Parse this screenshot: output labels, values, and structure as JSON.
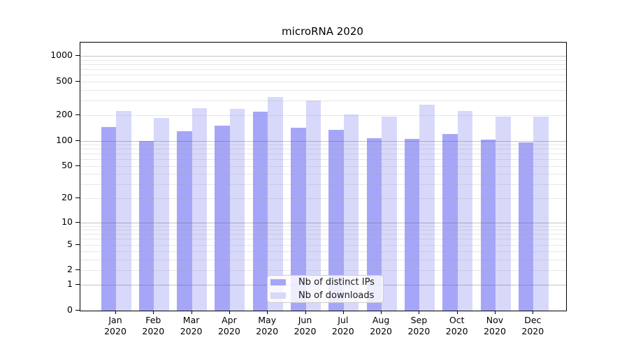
{
  "chart_data": {
    "type": "bar",
    "title": "microRNA 2020",
    "categories": [
      "Jan",
      "Feb",
      "Mar",
      "Apr",
      "May",
      "Jun",
      "Jul",
      "Aug",
      "Sep",
      "Oct",
      "Nov",
      "Dec"
    ],
    "year_label": "2020",
    "series": [
      {
        "name": "Nb of distinct IPs",
        "color": "#a6a6f8",
        "values": [
          145,
          100,
          130,
          150,
          220,
          142,
          135,
          108,
          105,
          120,
          102,
          95
        ]
      },
      {
        "name": "Nb of downloads",
        "color": "#d8d8fa",
        "values": [
          225,
          185,
          245,
          240,
          330,
          300,
          205,
          195,
          265,
          225,
          195,
          195
        ]
      }
    ],
    "yscale": "log1p",
    "ytick_values": [
      0,
      1,
      2,
      5,
      10,
      20,
      50,
      100,
      200,
      500,
      1000
    ],
    "ylim": [
      0,
      1410
    ],
    "xlabel": "",
    "ylabel": "",
    "grid": "horizontal (minor + major, drawn over bars)",
    "legend_position": "inside lower-center",
    "colors": {
      "background": "#ffffff",
      "spine": "#000000",
      "grid_major": "#b0b0b0",
      "grid_minor": "#e9e9e9",
      "text": "#000000"
    }
  }
}
